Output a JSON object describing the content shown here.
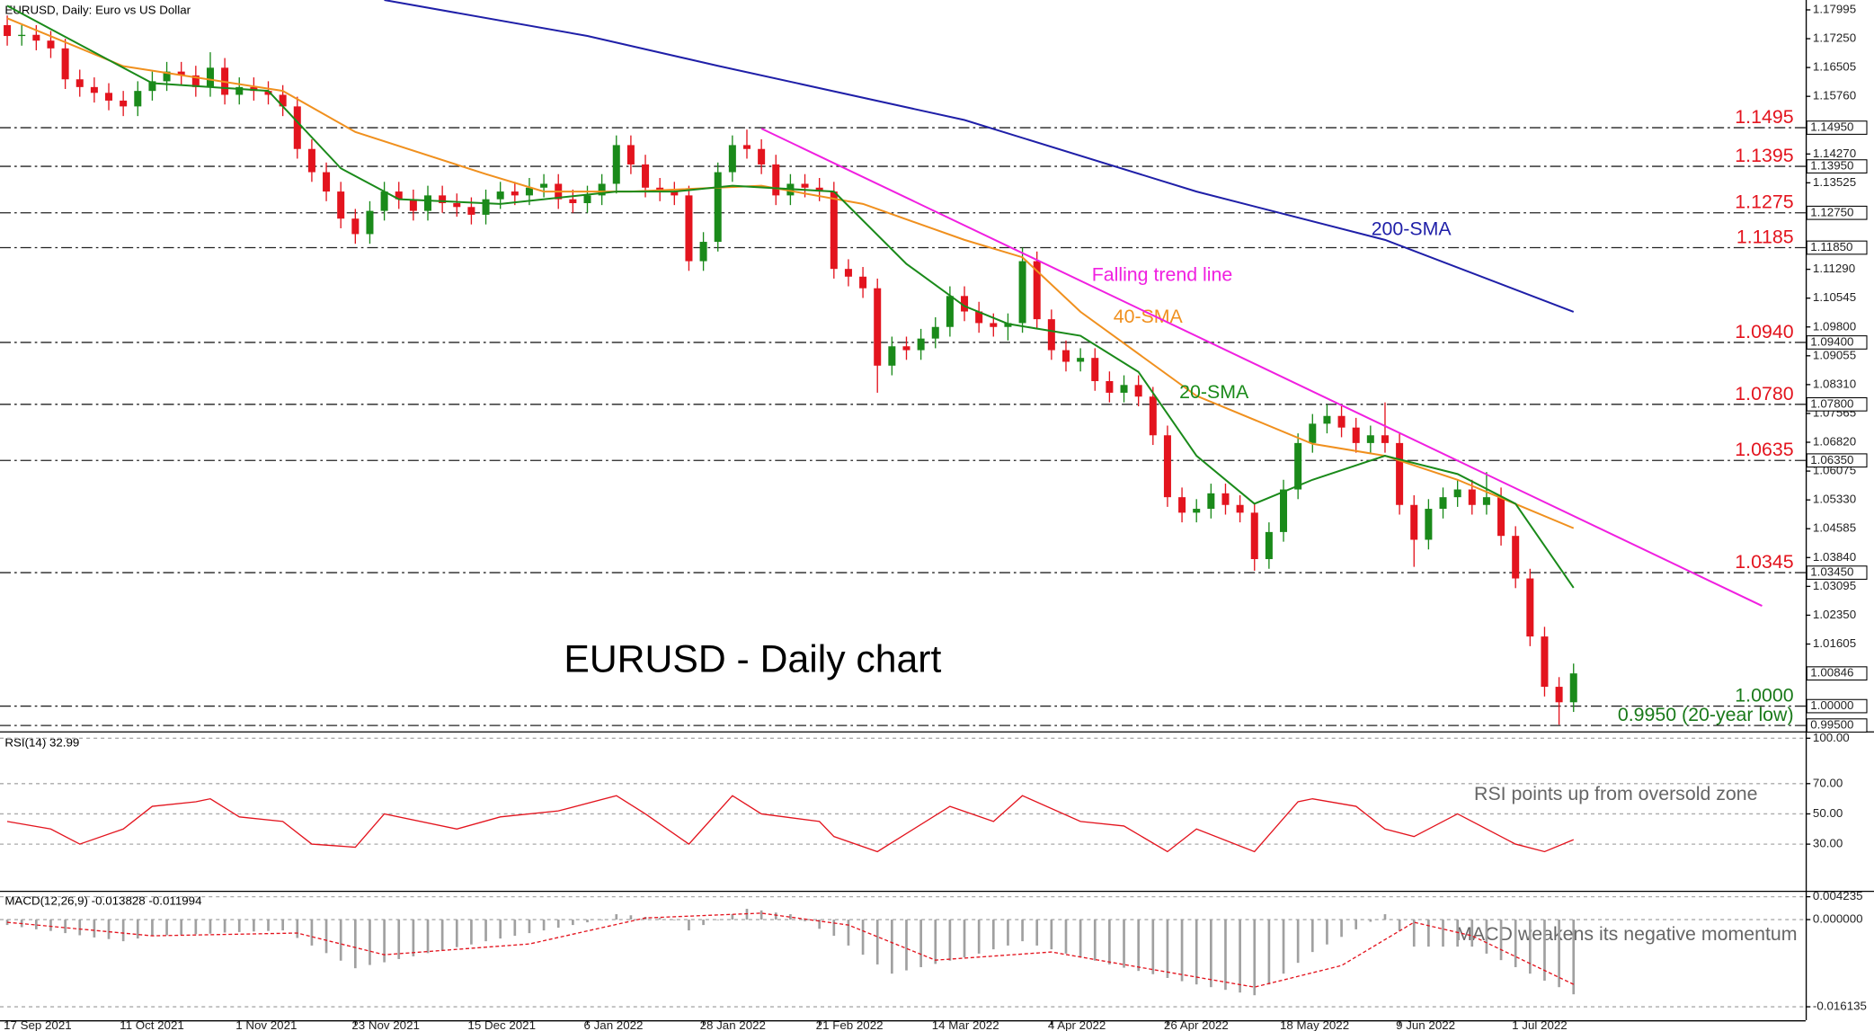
{
  "chart_data": [
    {
      "type": "candlestick",
      "title": "EURUSD, Daily: Euro vs US Dollar",
      "annotation": "EURUSD - Daily chart",
      "up_color": "#1a8a1a",
      "down_color": "#e3141e",
      "xlim": [
        -0.5,
        124
      ],
      "xticks": [
        {
          "value": 0,
          "label": "17 Sep 2021"
        },
        {
          "value": 8,
          "label": "11 Oct 2021"
        },
        {
          "value": 16,
          "label": "1 Nov 2021"
        },
        {
          "value": 24,
          "label": "23 Nov 2021"
        },
        {
          "value": 32,
          "label": "15 Dec 2021"
        },
        {
          "value": 40,
          "label": "6 Jan 2022"
        },
        {
          "value": 48,
          "label": "28 Jan 2022"
        },
        {
          "value": 56,
          "label": "21 Feb 2022"
        },
        {
          "value": 64,
          "label": "14 Mar 2022"
        },
        {
          "value": 72,
          "label": "4 Apr 2022"
        },
        {
          "value": 80,
          "label": "26 Apr 2022"
        },
        {
          "value": 88,
          "label": "18 May 2022"
        },
        {
          "value": 96,
          "label": "9 Jun 2022"
        },
        {
          "value": 104,
          "label": "1 Jul 2022"
        }
      ],
      "ylim": [
        0.9935,
        1.1825
      ],
      "yticks": [
        1.17995,
        {
          "value": 1.1725,
          "label": "1.17250"
        },
        1.16505,
        {
          "value": 1.1576,
          "label": "1.15760"
        },
        {
          "value": 1.1427,
          "label": "1.14270"
        },
        1.13525,
        {
          "value": 1.1129,
          "label": "1.11290"
        },
        1.10545,
        {
          "value": 1.098,
          "label": "1.09800"
        },
        1.09055,
        {
          "value": 1.0831,
          "label": "1.08310"
        },
        1.07565,
        {
          "value": 1.0682,
          "label": "1.06820"
        },
        1.06075,
        {
          "value": 1.0533,
          "label": "1.05330"
        },
        1.04585,
        {
          "value": 1.0384,
          "label": "1.03840"
        },
        1.03095,
        {
          "value": 1.0235,
          "label": "1.02350"
        },
        1.01605
      ],
      "levels": [
        {
          "value": 1.1495,
          "label": "1.1495",
          "axis_label": "1.14950",
          "color": "#e3141e"
        },
        {
          "value": 1.1395,
          "label": "1.1395",
          "axis_label": "1.13950",
          "color": "#e3141e"
        },
        {
          "value": 1.1275,
          "label": "1.1275",
          "axis_label": "1.12750",
          "color": "#e3141e"
        },
        {
          "value": 1.1185,
          "label": "1.1185",
          "axis_label": "1.11850",
          "color": "#e3141e"
        },
        {
          "value": 1.094,
          "label": "1.0940",
          "axis_label": "1.09400",
          "color": "#e3141e"
        },
        {
          "value": 1.078,
          "label": "1.0780",
          "axis_label": "1.07800",
          "color": "#e3141e"
        },
        {
          "value": 1.0635,
          "label": "1.0635",
          "axis_label": "1.06350",
          "color": "#e3141e"
        },
        {
          "value": 1.0345,
          "label": "1.0345",
          "axis_label": "1.03450",
          "color": "#e3141e"
        },
        {
          "value": 1.0,
          "label": "1.0000",
          "axis_label": "1.00000",
          "color": "#1a7a1a"
        },
        {
          "value": 0.995,
          "label": "0.9950 (20-year low)",
          "axis_label": "0.99500",
          "color": "#1a7a1a"
        }
      ],
      "price_marker": {
        "value": 1.00846,
        "label": "1.00846"
      },
      "candles": {
        "open": [
          1.176,
          1.1732,
          1.1735,
          1.172,
          1.17,
          1.162,
          1.16,
          1.1585,
          1.1565,
          1.155,
          1.159,
          1.1615,
          1.164,
          1.163,
          1.16,
          1.165,
          1.158,
          1.16,
          1.159,
          1.158,
          1.155,
          1.144,
          1.138,
          1.133,
          1.126,
          1.122,
          1.128,
          1.133,
          1.131,
          1.128,
          1.132,
          1.13,
          1.129,
          1.127,
          1.131,
          1.133,
          1.132,
          1.134,
          1.135,
          1.131,
          1.13,
          1.132,
          1.135,
          1.145,
          1.14,
          1.134,
          1.133,
          1.132,
          1.115,
          1.12,
          1.138,
          1.145,
          1.144,
          1.14,
          1.132,
          1.135,
          1.134,
          1.133,
          1.113,
          1.111,
          1.108,
          1.088,
          1.093,
          1.092,
          1.095,
          1.098,
          1.106,
          1.102,
          1.099,
          1.098,
          1.099,
          1.115,
          1.1,
          1.092,
          1.089,
          1.09,
          1.084,
          1.081,
          1.083,
          1.08,
          1.07,
          1.054,
          1.05,
          1.051,
          1.055,
          1.052,
          1.05,
          1.038,
          1.045,
          1.056,
          1.068,
          1.073,
          1.075,
          1.072,
          1.068,
          1.07,
          1.068,
          1.052,
          1.043,
          1.051,
          1.054,
          1.056,
          1.052,
          1.054,
          1.044,
          1.033,
          1.018,
          1.005,
          1.001
        ],
        "high": [
          1.1785,
          1.176,
          1.176,
          1.1745,
          1.1725,
          1.1645,
          1.1625,
          1.161,
          1.159,
          1.1615,
          1.164,
          1.1665,
          1.1665,
          1.1655,
          1.169,
          1.1675,
          1.1625,
          1.1625,
          1.1615,
          1.1605,
          1.1575,
          1.1465,
          1.1405,
          1.1355,
          1.1285,
          1.1305,
          1.1355,
          1.1355,
          1.1335,
          1.1345,
          1.1345,
          1.1325,
          1.1315,
          1.1335,
          1.1355,
          1.1355,
          1.1365,
          1.1375,
          1.1375,
          1.1335,
          1.1345,
          1.1375,
          1.1475,
          1.1475,
          1.1425,
          1.1365,
          1.1355,
          1.1345,
          1.1225,
          1.1405,
          1.1475,
          1.149,
          1.1465,
          1.1425,
          1.1375,
          1.1375,
          1.1365,
          1.1355,
          1.1155,
          1.1135,
          1.1105,
          1.0955,
          1.0955,
          1.0975,
          1.1005,
          1.1085,
          1.1085,
          1.1045,
          1.1015,
          1.1015,
          1.1185,
          1.1175,
          1.1025,
          1.0945,
          1.0925,
          1.0925,
          1.0865,
          1.0855,
          1.0855,
          1.0825,
          1.0725,
          1.0565,
          1.0535,
          1.0575,
          1.0575,
          1.0545,
          1.0525,
          1.0475,
          1.0585,
          1.0705,
          1.0755,
          1.078,
          1.0775,
          1.0745,
          1.0725,
          1.0785,
          1.0705,
          1.0545,
          1.0535,
          1.0565,
          1.0585,
          1.0585,
          1.0605,
          1.0565,
          1.0465,
          1.0355,
          1.0205,
          1.0075,
          1.011
        ],
        "low": [
          1.1707,
          1.1707,
          1.1695,
          1.1675,
          1.1595,
          1.1575,
          1.156,
          1.154,
          1.1525,
          1.1525,
          1.1565,
          1.159,
          1.1605,
          1.1575,
          1.1575,
          1.1555,
          1.1555,
          1.1565,
          1.1555,
          1.1525,
          1.1415,
          1.1355,
          1.1305,
          1.1235,
          1.1195,
          1.1195,
          1.1255,
          1.1285,
          1.1255,
          1.1255,
          1.1275,
          1.1265,
          1.1245,
          1.1245,
          1.1285,
          1.1295,
          1.1295,
          1.1315,
          1.1285,
          1.1275,
          1.1275,
          1.1295,
          1.1325,
          1.1375,
          1.1315,
          1.1305,
          1.1295,
          1.1125,
          1.1125,
          1.1175,
          1.1355,
          1.1415,
          1.1375,
          1.1295,
          1.1295,
          1.1315,
          1.1305,
          1.1105,
          1.1085,
          1.1055,
          1.081,
          1.0855,
          1.0895,
          1.0895,
          1.0925,
          1.0955,
          1.0995,
          1.0965,
          1.0955,
          1.0945,
          1.0965,
          1.0975,
          1.0895,
          1.0865,
          1.0865,
          1.0815,
          1.0785,
          1.0785,
          1.0775,
          1.0675,
          1.0515,
          1.0475,
          1.0475,
          1.0485,
          1.0495,
          1.0475,
          1.035,
          1.0355,
          1.0425,
          1.0535,
          1.0655,
          1.0705,
          1.0695,
          1.0655,
          1.0655,
          1.0655,
          1.0495,
          1.036,
          1.0405,
          1.0485,
          1.0515,
          1.0495,
          1.0495,
          1.0415,
          1.0305,
          1.0155,
          1.0025,
          0.9952,
          0.9985
        ],
        "close": [
          1.1732,
          1.1735,
          1.172,
          1.17,
          1.162,
          1.16,
          1.1585,
          1.1565,
          1.155,
          1.159,
          1.1615,
          1.164,
          1.163,
          1.16,
          1.165,
          1.158,
          1.16,
          1.159,
          1.158,
          1.155,
          1.144,
          1.138,
          1.133,
          1.126,
          1.122,
          1.128,
          1.133,
          1.131,
          1.128,
          1.132,
          1.13,
          1.129,
          1.127,
          1.131,
          1.133,
          1.132,
          1.134,
          1.135,
          1.131,
          1.13,
          1.132,
          1.135,
          1.145,
          1.14,
          1.134,
          1.133,
          1.132,
          1.115,
          1.12,
          1.138,
          1.145,
          1.144,
          1.14,
          1.132,
          1.135,
          1.134,
          1.133,
          1.113,
          1.111,
          1.108,
          1.088,
          1.093,
          1.092,
          1.095,
          1.098,
          1.106,
          1.102,
          1.099,
          1.098,
          1.099,
          1.115,
          1.1,
          1.092,
          1.089,
          1.09,
          1.084,
          1.081,
          1.083,
          1.08,
          1.07,
          1.054,
          1.05,
          1.051,
          1.055,
          1.052,
          1.05,
          1.038,
          1.045,
          1.056,
          1.068,
          1.073,
          1.075,
          1.072,
          1.068,
          1.07,
          1.068,
          1.052,
          1.043,
          1.051,
          1.054,
          1.056,
          1.052,
          1.054,
          1.044,
          1.033,
          1.018,
          1.005,
          1.001,
          1.00846
        ]
      },
      "series": [
        {
          "name": "200-SMA",
          "color": "#1f1fa8",
          "x": [
            26,
            40,
            49,
            66,
            82,
            95,
            108
          ],
          "values": [
            1.1825,
            1.1732,
            1.1655,
            1.1515,
            1.133,
            1.1205,
            1.1019
          ]
        },
        {
          "name": "40-SMA",
          "color": "#f0901e",
          "x": [
            0,
            8,
            19,
            24,
            33,
            37,
            43,
            52,
            59,
            66,
            70,
            74,
            82,
            90,
            95,
            100,
            108
          ],
          "values": [
            1.1778,
            1.1654,
            1.159,
            1.1484,
            1.1375,
            1.133,
            1.133,
            1.1345,
            1.1298,
            1.1205,
            1.116,
            1.1019,
            1.0802,
            1.0678,
            1.0647,
            1.0585,
            1.046
          ]
        },
        {
          "name": "20-SMA",
          "color": "#1a8a1a",
          "x": [
            0,
            4,
            10,
            18,
            23,
            27,
            34,
            42,
            46,
            50,
            57,
            62,
            66,
            69,
            74,
            78,
            82,
            86,
            90,
            95,
            100,
            104,
            108
          ],
          "values": [
            1.181,
            1.173,
            1.161,
            1.159,
            1.139,
            1.131,
            1.1298,
            1.133,
            1.133,
            1.1345,
            1.133,
            1.1143,
            1.1034,
            1.0988,
            1.0957,
            1.0864,
            1.0647,
            1.0523,
            1.0585,
            1.0647,
            1.06,
            1.0523,
            1.0306
          ]
        },
        {
          "name": "Falling trend line",
          "color": "#f020e0",
          "x": [
            52,
            121
          ],
          "values": [
            1.1493,
            1.0259
          ]
        }
      ]
    },
    {
      "type": "line",
      "title": "RSI(14) 32.99",
      "annotation": "RSI points up from oversold zone",
      "xlim": [
        -0.5,
        124
      ],
      "ylim": [
        0,
        103
      ],
      "yticks": [
        {
          "value": 100,
          "label": "100.00"
        },
        {
          "value": 70,
          "label": "70.00"
        },
        {
          "value": 50,
          "label": "50.00"
        },
        {
          "value": 30,
          "label": "30.00"
        }
      ],
      "series": [
        {
          "color": "#e3141e",
          "x": [
            0,
            3,
            5,
            8,
            10,
            13,
            14,
            16,
            19,
            21,
            24,
            26,
            31,
            34,
            38,
            42,
            44,
            47,
            50,
            52,
            56,
            57,
            60,
            65,
            68,
            70,
            74,
            77,
            80,
            82,
            86,
            89,
            90,
            93,
            95,
            97,
            100,
            103,
            104,
            106,
            108
          ],
          "values": [
            45,
            40,
            30,
            40,
            55,
            58,
            60,
            48,
            45,
            30,
            28,
            50,
            40,
            48,
            52,
            62,
            50,
            30,
            62,
            50,
            45,
            35,
            25,
            55,
            45,
            62,
            45,
            42,
            25,
            40,
            25,
            58,
            60,
            55,
            40,
            35,
            50,
            35,
            30,
            25,
            32.99
          ]
        }
      ]
    },
    {
      "type": "bar",
      "title": "MACD(12,26,9) -0.013828 -0.011994",
      "annotation": "MACD weakens its negative momentum",
      "xlim": [
        -0.5,
        124
      ],
      "ylim": [
        -0.0184,
        0.0049
      ],
      "yticks": [
        0.004235,
        {
          "value": 0,
          "label": "0.000000"
        },
        -0.016135
      ],
      "series": [
        {
          "color": "#a0a0a0",
          "values": [
            -0.001,
            -0.0014,
            -0.0018,
            -0.0021,
            -0.0025,
            -0.0029,
            -0.0033,
            -0.0036,
            -0.004,
            -0.0035,
            -0.003,
            -0.0029,
            -0.0028,
            -0.0027,
            -0.0026,
            -0.0024,
            -0.0023,
            -0.0022,
            -0.0021,
            -0.002,
            -0.0034,
            -0.0048,
            -0.0062,
            -0.0076,
            -0.009,
            -0.0084,
            -0.0079,
            -0.0073,
            -0.0068,
            -0.0062,
            -0.0057,
            -0.0051,
            -0.0046,
            -0.004,
            -0.0035,
            -0.003,
            -0.0025,
            -0.002,
            -0.0015,
            -0.001,
            -0.0005,
            0.0,
            0.001,
            0.0008,
            0.0005,
            0.0003,
            0.0,
            -0.002,
            -0.001,
            0.0,
            0.001,
            0.002,
            0.0017,
            0.0013,
            0.001,
            -0.0003,
            -0.0017,
            -0.003,
            -0.0048,
            -0.0065,
            -0.0083,
            -0.01,
            -0.0094,
            -0.0088,
            -0.0082,
            -0.0076,
            -0.007,
            -0.0063,
            -0.0055,
            -0.0048,
            -0.004,
            -0.0048,
            -0.0055,
            -0.0063,
            -0.007,
            -0.0076,
            -0.0083,
            -0.0089,
            -0.0095,
            -0.0101,
            -0.0108,
            -0.0114,
            -0.012,
            -0.0125,
            -0.013,
            -0.0135,
            -0.014,
            -0.012,
            -0.01,
            -0.008,
            -0.006,
            -0.0046,
            -0.0032,
            -0.0018,
            -0.0004,
            0.001,
            -0.002,
            -0.005,
            -0.005,
            -0.005,
            -0.005,
            -0.005,
            -0.0063,
            -0.0075,
            -0.0088,
            -0.01,
            -0.0113,
            -0.0125,
            -0.013828
          ]
        },
        {
          "color": "#e3141e",
          "x": [
            0,
            10,
            20,
            26,
            36,
            44,
            52,
            58,
            64,
            72,
            86,
            92,
            97,
            101,
            108
          ],
          "values": [
            -0.0005,
            -0.003,
            -0.0025,
            -0.0065,
            -0.0045,
            0.0003,
            0.0012,
            -0.001,
            -0.0075,
            -0.006,
            -0.0125,
            -0.0085,
            -0.0005,
            -0.003,
            -0.011994
          ]
        }
      ]
    }
  ]
}
